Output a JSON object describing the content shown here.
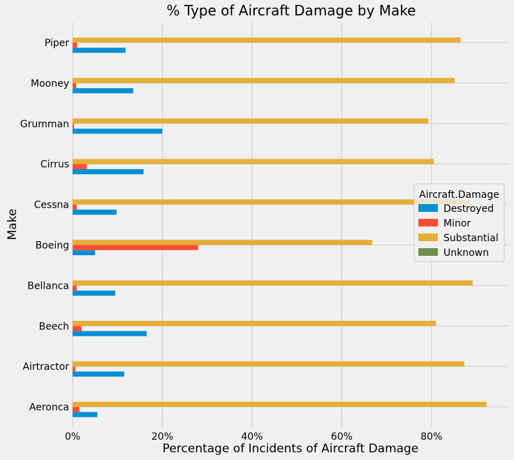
{
  "chart_data": {
    "type": "bar",
    "orientation": "horizontal",
    "title": "% Type of Aircraft Damage by Make",
    "xlabel": "Percentage of Incidents of Aircraft Damage",
    "ylabel": "Make",
    "xlim": [
      0,
      97
    ],
    "x_ticks": [
      0,
      20,
      40,
      60,
      80
    ],
    "x_tick_labels": [
      "0%",
      "20%",
      "40%",
      "60%",
      "80%"
    ],
    "grid": true,
    "legend": {
      "title": "Aircraft.Damage",
      "placement": "center-right"
    },
    "categories": [
      "Aeronca",
      "Airtractor",
      "Beech",
      "Bellanca",
      "Boeing",
      "Cessna",
      "Cirrus",
      "Grumman",
      "Mooney",
      "Piper"
    ],
    "series": [
      {
        "name": "Destroyed",
        "color": "#008fd5",
        "values": [
          5.5,
          11.5,
          16.5,
          9.5,
          5.0,
          9.8,
          15.8,
          20.0,
          13.5,
          11.8
        ]
      },
      {
        "name": "Minor",
        "color": "#fc4f30",
        "values": [
          1.5,
          0.6,
          2.0,
          0.9,
          28.0,
          0.9,
          3.2,
          0.3,
          0.8,
          1.0
        ]
      },
      {
        "name": "Substantial",
        "color": "#e5ae38",
        "values": [
          92.3,
          87.3,
          81.0,
          89.2,
          66.8,
          88.5,
          80.5,
          79.3,
          85.2,
          86.5
        ]
      },
      {
        "name": "Unknown",
        "color": "#6d904f",
        "values": [
          0,
          0,
          0,
          0,
          0,
          0,
          0,
          0,
          0,
          0
        ]
      }
    ]
  }
}
